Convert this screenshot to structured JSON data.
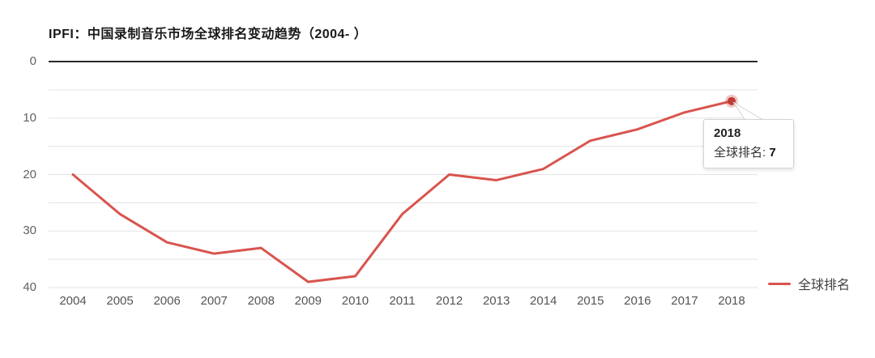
{
  "title": "IPFI：中国录制音乐市场全球排名变动趋势（2004- ）",
  "chart_data": {
    "type": "line",
    "title": "IPFI：中国录制音乐市场全球排名变动趋势（2004- ）",
    "categories": [
      "2004",
      "2005",
      "2006",
      "2007",
      "2008",
      "2009",
      "2010",
      "2011",
      "2012",
      "2013",
      "2014",
      "2015",
      "2016",
      "2017",
      "2018"
    ],
    "series": [
      {
        "name": "全球排名",
        "values": [
          20,
          27,
          32,
          34,
          33,
          39,
          38,
          27,
          20,
          21,
          19,
          14,
          12,
          9,
          7
        ]
      }
    ],
    "ylabel": "",
    "xlabel": "",
    "ylim": [
      0,
      40
    ],
    "y_axis_inverted": true,
    "y_tick_step": 5,
    "y_label_step": 10,
    "y_tick_labels": [
      "0",
      "10",
      "20",
      "30",
      "40"
    ],
    "grid": true,
    "legend_position": "bottom-right",
    "annotation": {
      "category": "2018",
      "series": "全球排名",
      "value": 7
    }
  },
  "legend": {
    "label": "全球排名"
  },
  "tooltip": {
    "year": "2018",
    "series_label": "全球排名",
    "separator": ": ",
    "value": "7"
  },
  "colors": {
    "line": "#d9544e",
    "dot": "#c13b32",
    "dot_halo": "rgba(201,70,63,0.3)",
    "zero_axis": "#2b2b2b",
    "grid": "#e3e3e3",
    "tick": "#616161"
  }
}
